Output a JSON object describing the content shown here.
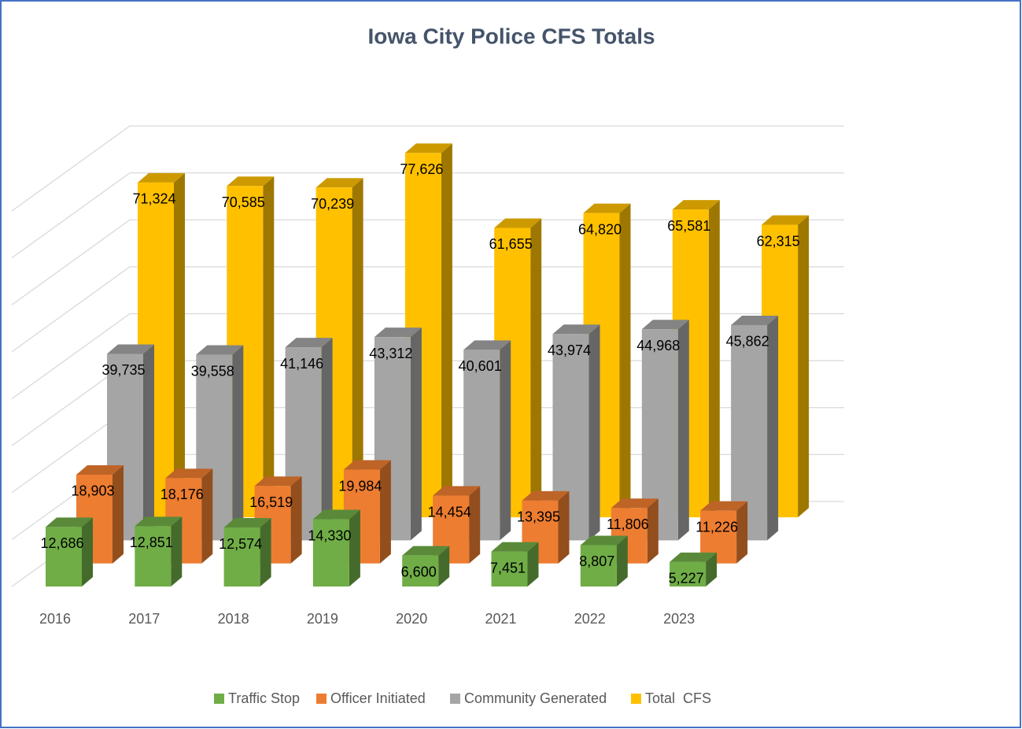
{
  "chart_data": {
    "type": "bar3d",
    "title": "Iowa City Police CFS Totals",
    "categories": [
      "2016",
      "2017",
      "2018",
      "2019",
      "2020",
      "2021",
      "2022",
      "2023"
    ],
    "ylim": [
      0,
      80000
    ],
    "yticks": [
      0,
      10000,
      20000,
      30000,
      40000,
      50000,
      60000,
      70000,
      80000
    ],
    "grid": true,
    "legend": "bottom",
    "series": [
      {
        "name": "Traffic Stop",
        "color": "#70ad47",
        "values": [
          12686,
          12851,
          12574,
          14330,
          6600,
          7451,
          8807,
          5227
        ],
        "value_labels": [
          "12,686",
          "12,851",
          "12,574",
          "14,330",
          "6,600",
          "7,451",
          "8,807",
          "5,227"
        ]
      },
      {
        "name": "Officer Initiated",
        "color": "#ed7d31",
        "values": [
          18903,
          18176,
          16519,
          19984,
          14454,
          13395,
          11806,
          11226
        ],
        "value_labels": [
          "18,903",
          "18,176",
          "16,519",
          "19,984",
          "14,454",
          "13,395",
          "11,806",
          "11,226"
        ]
      },
      {
        "name": "Community Generated",
        "color": "#a5a5a5",
        "values": [
          39735,
          39558,
          41146,
          43312,
          40601,
          43974,
          44968,
          45862
        ],
        "value_labels": [
          "39,735",
          "39,558",
          "41,146",
          "43,312",
          "40,601",
          "43,974",
          "44,968",
          "45,862"
        ]
      },
      {
        "name": "Total  CFS",
        "color": "#ffc000",
        "values": [
          71324,
          70585,
          70239,
          77626,
          61655,
          64820,
          65581,
          62315
        ],
        "value_labels": [
          "71,324",
          "70,585",
          "70,239",
          "77,626",
          "61,655",
          "64,820",
          "65,581",
          "62,315"
        ]
      }
    ]
  }
}
